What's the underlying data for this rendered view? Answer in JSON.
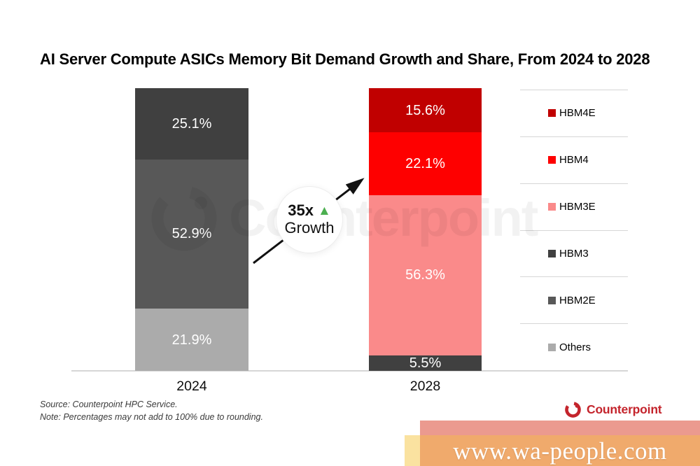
{
  "title": "AI Server Compute ASICs Memory Bit Demand Growth and Share, From 2024 to 2028",
  "chart_data": {
    "type": "bar",
    "stacked": true,
    "unit": "%",
    "categories": [
      "2024",
      "2028"
    ],
    "series": [
      {
        "name": "HBM4E",
        "color": "#C00000",
        "values": [
          0,
          15.6
        ]
      },
      {
        "name": "HBM4",
        "color": "#FE0000",
        "values": [
          0,
          22.1
        ]
      },
      {
        "name": "HBM3E",
        "color": "#FA8A8A",
        "values": [
          0,
          56.3
        ]
      },
      {
        "name": "HBM3",
        "color": "#404040",
        "values": [
          25.1,
          5.5
        ]
      },
      {
        "name": "HBM2E",
        "color": "#585858",
        "values": [
          52.9,
          0
        ]
      },
      {
        "name": "Others",
        "color": "#ABABAB",
        "values": [
          21.9,
          0
        ]
      }
    ],
    "legend_position": "right",
    "grid": false,
    "annotation": {
      "multiplier": "35x",
      "label": "Growth",
      "arrow": "up-right",
      "triangle_color": "#4CAF50"
    }
  },
  "footer": {
    "source": "Source: Counterpoint HPC Service.",
    "note": "Note: Percentages may not add to 100% due to rounding."
  },
  "brand": {
    "name": "Counterpoint",
    "color": "#C4242C"
  },
  "watermark": {
    "text": "Counterpoint"
  },
  "banner": {
    "url_text": "www.wa-people.com",
    "colors": {
      "strip": "#EB9A8F",
      "bar": "#F0AA6C",
      "accent": "#FAE2A0",
      "text": "#FFFFFF"
    }
  }
}
